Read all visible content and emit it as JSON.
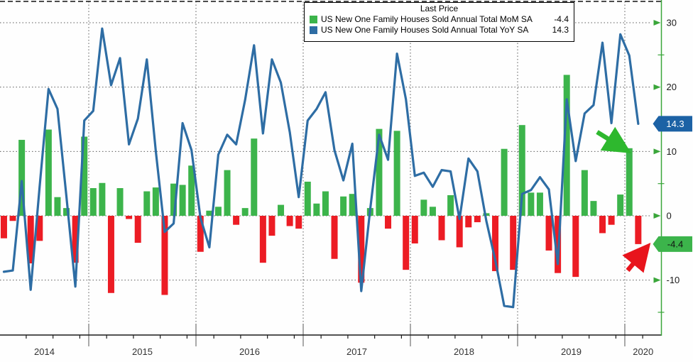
{
  "legend": {
    "title": "Last Price",
    "series": [
      {
        "label": "US New One Family Houses Sold Annual Total MoM SA",
        "value": "-4.4",
        "color": "#3cb44b"
      },
      {
        "label": "US New One Family Houses Sold Annual Total YoY SA",
        "value": "14.3",
        "color": "#2e6da4"
      }
    ]
  },
  "chart_data": {
    "type": "bar",
    "subtype": "bar+line combo, monthly time series",
    "title": "Last Price",
    "x": [
      "2014-03",
      "2014-04",
      "2014-05",
      "2014-06",
      "2014-07",
      "2014-08",
      "2014-09",
      "2014-10",
      "2014-11",
      "2014-12",
      "2015-01",
      "2015-02",
      "2015-03",
      "2015-04",
      "2015-05",
      "2015-06",
      "2015-07",
      "2015-08",
      "2015-09",
      "2015-10",
      "2015-11",
      "2015-12",
      "2016-01",
      "2016-02",
      "2016-03",
      "2016-04",
      "2016-05",
      "2016-06",
      "2016-07",
      "2016-08",
      "2016-09",
      "2016-10",
      "2016-11",
      "2016-12",
      "2017-01",
      "2017-02",
      "2017-03",
      "2017-04",
      "2017-05",
      "2017-06",
      "2017-07",
      "2017-08",
      "2017-09",
      "2017-10",
      "2017-11",
      "2017-12",
      "2018-01",
      "2018-02",
      "2018-03",
      "2018-04",
      "2018-05",
      "2018-06",
      "2018-07",
      "2018-08",
      "2018-09",
      "2018-10",
      "2018-11",
      "2018-12",
      "2019-01",
      "2019-02",
      "2019-03",
      "2019-04",
      "2019-05",
      "2019-06",
      "2019-07",
      "2019-08",
      "2019-09",
      "2019-10",
      "2019-11",
      "2019-12",
      "2020-01",
      "2020-02"
    ],
    "series": [
      {
        "name": "US New One Family Houses Sold Annual Total MoM SA",
        "type": "bar",
        "color_positive": "#3cb44b",
        "color_negative": "#ec1c24",
        "last_value": -4.4,
        "values": [
          -3.5,
          -0.8,
          11.8,
          -7.4,
          -3.9,
          13.4,
          2.9,
          1.2,
          -7.3,
          12.3,
          4.3,
          5.1,
          -12.0,
          4.3,
          -0.5,
          -4.2,
          3.8,
          4.4,
          -12.3,
          5.0,
          4.8,
          7.8,
          -5.6,
          0.8,
          1.4,
          7.1,
          -1.4,
          1.2,
          12.0,
          -7.3,
          -3.1,
          1.7,
          -1.6,
          -2.0,
          5.3,
          1.9,
          3.8,
          -6.7,
          3.0,
          3.4,
          -10.4,
          1.2,
          13.5,
          -2.0,
          13.2,
          -8.4,
          -4.3,
          2.5,
          1.4,
          -3.8,
          3.2,
          -4.9,
          -1.8,
          -1.0,
          0.4,
          -8.6,
          10.4,
          -8.4,
          14.1,
          3.6,
          3.6,
          -5.4,
          -8.9,
          21.9,
          -9.5,
          7.1,
          2.3,
          -2.7,
          -1.4,
          3.3,
          10.5,
          -4.4
        ]
      },
      {
        "name": "US New One Family Houses Sold Annual Total YoY SA",
        "type": "line",
        "color": "#2e6da4",
        "last_value": 14.3,
        "values": [
          -8.7,
          -8.5,
          5.4,
          -11.5,
          4.5,
          19.7,
          16.6,
          3.0,
          -11.0,
          14.8,
          16.3,
          29.1,
          20.3,
          24.5,
          11.1,
          15.1,
          24.3,
          10.1,
          -2.5,
          -1.2,
          14.4,
          10.2,
          -0.3,
          -4.9,
          9.5,
          12.6,
          11.1,
          18.0,
          26.5,
          12.8,
          24.3,
          20.7,
          13.0,
          2.9,
          14.8,
          16.6,
          19.2,
          10.2,
          5.5,
          11.2,
          -11.7,
          1.0,
          12.6,
          8.7,
          25.2,
          18.1,
          6.2,
          6.7,
          4.5,
          7.1,
          6.9,
          -0.5,
          8.9,
          6.9,
          -0.8,
          -6.9,
          -14.0,
          -14.2,
          3.4,
          4.0,
          6.0,
          4.1,
          -7.5,
          18.1,
          8.5,
          15.9,
          17.2,
          26.9,
          14.4,
          28.2,
          24.9,
          14.3
        ]
      }
    ],
    "yaxis": {
      "side": "right",
      "ticks": [
        30,
        20,
        10,
        0,
        -10
      ],
      "minor_ticks": [
        25,
        15,
        5,
        -5,
        -15
      ],
      "range": [
        -17.5,
        33
      ],
      "axis_color": "#3aa63a",
      "label_color": "#1a1a1a"
    },
    "xaxis": {
      "year_labels": [
        "2014",
        "2015",
        "2016",
        "2017",
        "2018",
        "2019",
        "2020"
      ],
      "label_color": "#333333"
    },
    "grid": {
      "horizontal": true,
      "vertical_at_year_boundaries": true,
      "style": "dotted",
      "color": "#595959"
    },
    "legend_position": "top-center",
    "badges": [
      {
        "text": "14.3",
        "value": 14.3,
        "bg": "#1c62a5",
        "fg": "#ffffff"
      },
      {
        "text": "-4.4",
        "value": -4.4,
        "bg": "#3cb44b",
        "fg": "#111111"
      }
    ],
    "annotations": [
      {
        "kind": "arrow",
        "color": "#2eb82e",
        "from": [
          841,
          186
        ],
        "to": [
          878,
          209
        ],
        "points_at": "last tall green MoM bar"
      },
      {
        "kind": "arrow",
        "color": "#e8141c",
        "from": [
          884,
          381
        ],
        "to": [
          908,
          352
        ],
        "points_at": "final -4.4 MoM bar"
      }
    ],
    "colors": {
      "background": "#fefefe",
      "top_border": "#111111",
      "x_axis": "#1a1a1a"
    }
  }
}
